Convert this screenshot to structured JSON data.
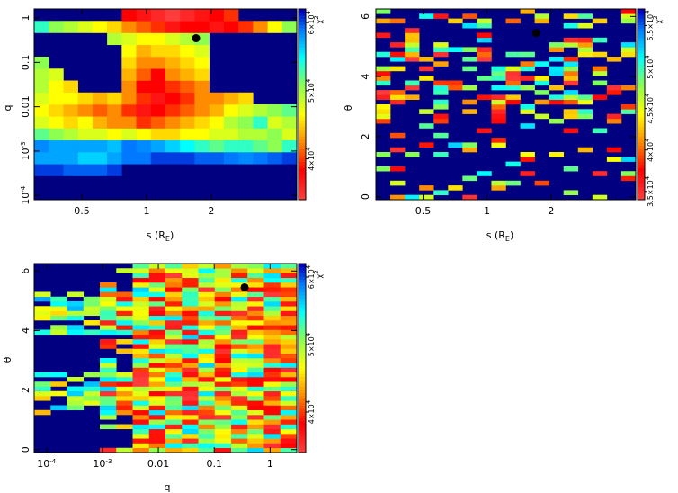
{
  "chart_data": [
    {
      "type": "heatmap",
      "id": "panel-q-vs-s",
      "xlabel": "s (R",
      "xlabel_sub": "E",
      "xlabel_close": ")",
      "ylabel": "q",
      "xscale": "log",
      "yscale": "log",
      "xlim": [
        0.3,
        5.0
      ],
      "ylim": [
        8e-05,
        1.6
      ],
      "xticks": [
        {
          "v": 0.5,
          "label": "0.5"
        },
        {
          "v": 1,
          "label": "1"
        },
        {
          "v": 2,
          "label": "2"
        }
      ],
      "yticks": [
        {
          "v": 1,
          "label": "1"
        },
        {
          "v": 0.1,
          "label": "0.1"
        },
        {
          "v": 0.01,
          "label": "0.01"
        },
        {
          "v": 0.001,
          "label": "10",
          "sup": "-3"
        },
        {
          "v": 0.0001,
          "label": "10",
          "sup": "-4"
        }
      ],
      "nx": 18,
      "ny": 16,
      "grid": [
        [
          0.0,
          0.0,
          0.0,
          0.0,
          0.0,
          0.0,
          0.0,
          0.0,
          0.0,
          0.0,
          0.0,
          0.0,
          0.0,
          0.0,
          0.0,
          0.0,
          0.0,
          0.0
        ],
        [
          0.0,
          0.0,
          0.0,
          0.0,
          0.0,
          0.0,
          0.0,
          0.0,
          0.0,
          0.0,
          0.0,
          0.0,
          0.0,
          0.0,
          0.0,
          0.0,
          0.0,
          0.0
        ],
        [
          0.05,
          0.05,
          0.08,
          0.08,
          0.08,
          0.05,
          0.0,
          0.0,
          0.0,
          0.0,
          0.0,
          0.0,
          0.0,
          0.0,
          0.0,
          0.0,
          0.0,
          0.0
        ],
        [
          0.15,
          0.15,
          0.15,
          0.2,
          0.2,
          0.15,
          0.1,
          0.1,
          0.05,
          0.05,
          0.05,
          0.08,
          0.08,
          0.1,
          0.12,
          0.1,
          0.08,
          0.05
        ],
        [
          0.12,
          0.15,
          0.15,
          0.15,
          0.15,
          0.18,
          0.1,
          0.12,
          0.15,
          0.2,
          0.25,
          0.3,
          0.35,
          0.3,
          0.3,
          0.35,
          0.4,
          0.3
        ],
        [
          0.35,
          0.4,
          0.45,
          0.5,
          0.5,
          0.55,
          0.5,
          0.55,
          0.6,
          0.6,
          0.55,
          0.55,
          0.5,
          0.5,
          0.45,
          0.45,
          0.4,
          0.5
        ],
        [
          0.5,
          0.55,
          0.6,
          0.55,
          0.65,
          0.7,
          0.7,
          0.8,
          0.75,
          0.7,
          0.65,
          0.6,
          0.55,
          0.45,
          0.4,
          0.3,
          0.5,
          0.45
        ],
        [
          0.55,
          0.6,
          0.65,
          0.7,
          0.75,
          0.7,
          0.8,
          0.9,
          0.85,
          0.8,
          0.75,
          0.7,
          0.65,
          0.55,
          0.5,
          0.45,
          0.4,
          0.35
        ],
        [
          0.5,
          0.55,
          0.55,
          0.6,
          0.65,
          0.6,
          0.7,
          0.8,
          0.9,
          0.85,
          0.8,
          0.7,
          0.7,
          0.65,
          0.6,
          0.0,
          0.0,
          0.0
        ],
        [
          0.45,
          0.55,
          0.6,
          0.0,
          0.0,
          0.0,
          0.7,
          0.85,
          0.85,
          0.8,
          0.75,
          0.7,
          0.0,
          0.0,
          0.0,
          0.0,
          0.0,
          0.0
        ],
        [
          0.45,
          0.5,
          0.0,
          0.0,
          0.0,
          0.0,
          0.65,
          0.75,
          0.85,
          0.7,
          0.65,
          0.6,
          0.0,
          0.0,
          0.0,
          0.0,
          0.0,
          0.0
        ],
        [
          0.4,
          0.0,
          0.0,
          0.0,
          0.0,
          0.0,
          0.6,
          0.7,
          0.7,
          0.65,
          0.6,
          0.55,
          0.0,
          0.0,
          0.0,
          0.0,
          0.0,
          0.0
        ],
        [
          0.0,
          0.0,
          0.0,
          0.0,
          0.0,
          0.0,
          0.55,
          0.65,
          0.6,
          0.6,
          0.55,
          0.5,
          0.0,
          0.0,
          0.0,
          0.0,
          0.0,
          0.0
        ],
        [
          0.0,
          0.0,
          0.0,
          0.0,
          0.0,
          0.45,
          0.5,
          0.55,
          0.55,
          0.5,
          0.45,
          0.4,
          0.0,
          0.0,
          0.0,
          0.0,
          0.0,
          0.0
        ],
        [
          0.3,
          0.4,
          0.45,
          0.5,
          0.55,
          0.6,
          0.7,
          0.75,
          0.8,
          0.9,
          0.85,
          0.85,
          0.9,
          0.85,
          0.8,
          0.7,
          0.55,
          0.4
        ],
        [
          0.0,
          0.0,
          0.0,
          0.0,
          0.0,
          0.0,
          0.85,
          0.9,
          0.95,
          1.0,
          0.95,
          0.9,
          0.85,
          0.8,
          0.0,
          0.0,
          0.0,
          0.0
        ]
      ],
      "best_fit": {
        "x": 1.7,
        "y": 0.35
      },
      "colorbar": {
        "label": "χ",
        "label_sup": "2",
        "min": 34000,
        "max": 62000,
        "ticks": [
          {
            "v": 40000,
            "label": "4×10",
            "sup": "4"
          },
          {
            "v": 50000,
            "label": "5×10",
            "sup": "4"
          },
          {
            "v": 60000,
            "label": "6×10",
            "sup": "4"
          }
        ]
      }
    },
    {
      "type": "heatmap",
      "id": "panel-theta-vs-s",
      "xlabel": "s (R",
      "xlabel_sub": "E",
      "xlabel_close": ")",
      "ylabel": "θ",
      "xscale": "log",
      "yscale": "linear",
      "xlim": [
        0.3,
        5.0
      ],
      "ylim": [
        -0.1,
        6.25
      ],
      "xticks": [
        {
          "v": 0.5,
          "label": "0.5"
        },
        {
          "v": 1,
          "label": "1"
        },
        {
          "v": 2,
          "label": "2"
        }
      ],
      "yticks": [
        {
          "v": 0,
          "label": "0"
        },
        {
          "v": 2,
          "label": "2"
        },
        {
          "v": 4,
          "label": "4"
        },
        {
          "v": 6,
          "label": "6"
        }
      ],
      "nx": 18,
      "ny": 40,
      "grid_seed": 7,
      "best_fit": {
        "x": 1.7,
        "y": 5.45
      },
      "colorbar": {
        "label": "χ",
        "label_sup": "2",
        "min": 34000,
        "max": 57000,
        "ticks": [
          {
            "v": 35000,
            "label": "3.5×10",
            "sup": "4"
          },
          {
            "v": 40000,
            "label": "4×10",
            "sup": "4"
          },
          {
            "v": 45000,
            "label": "4.5×10",
            "sup": "4"
          },
          {
            "v": 50000,
            "label": "5×10",
            "sup": "4"
          },
          {
            "v": 55000,
            "label": "5.5×10",
            "sup": "4"
          }
        ]
      }
    },
    {
      "type": "heatmap",
      "id": "panel-theta-vs-q",
      "xlabel": "q",
      "ylabel": "θ",
      "xscale": "log",
      "yscale": "linear",
      "xlim": [
        6e-05,
        3.0
      ],
      "ylim": [
        -0.1,
        6.25
      ],
      "xticks": [
        {
          "v": 0.0001,
          "label": "10",
          "sup": "-4"
        },
        {
          "v": 0.001,
          "label": "10",
          "sup": "-3"
        },
        {
          "v": 0.01,
          "label": "0.01"
        },
        {
          "v": 0.1,
          "label": "0.1"
        },
        {
          "v": 1,
          "label": "1"
        }
      ],
      "yticks": [
        {
          "v": 0,
          "label": "0"
        },
        {
          "v": 2,
          "label": "2"
        },
        {
          "v": 4,
          "label": "4"
        },
        {
          "v": 6,
          "label": "6"
        }
      ],
      "nx": 16,
      "ny": 40,
      "grid_seed": 13,
      "best_fit": {
        "x": 0.35,
        "y": 5.45
      },
      "colorbar": {
        "label": "χ",
        "label_sup": "2",
        "min": 34000,
        "max": 62000,
        "ticks": [
          {
            "v": 40000,
            "label": "4×10",
            "sup": "4"
          },
          {
            "v": 50000,
            "label": "5×10",
            "sup": "4"
          },
          {
            "v": 60000,
            "label": "6×10",
            "sup": "4"
          }
        ]
      }
    }
  ],
  "colors": {
    "background": "#000080",
    "marker": "#000000",
    "axis": "#000000"
  }
}
